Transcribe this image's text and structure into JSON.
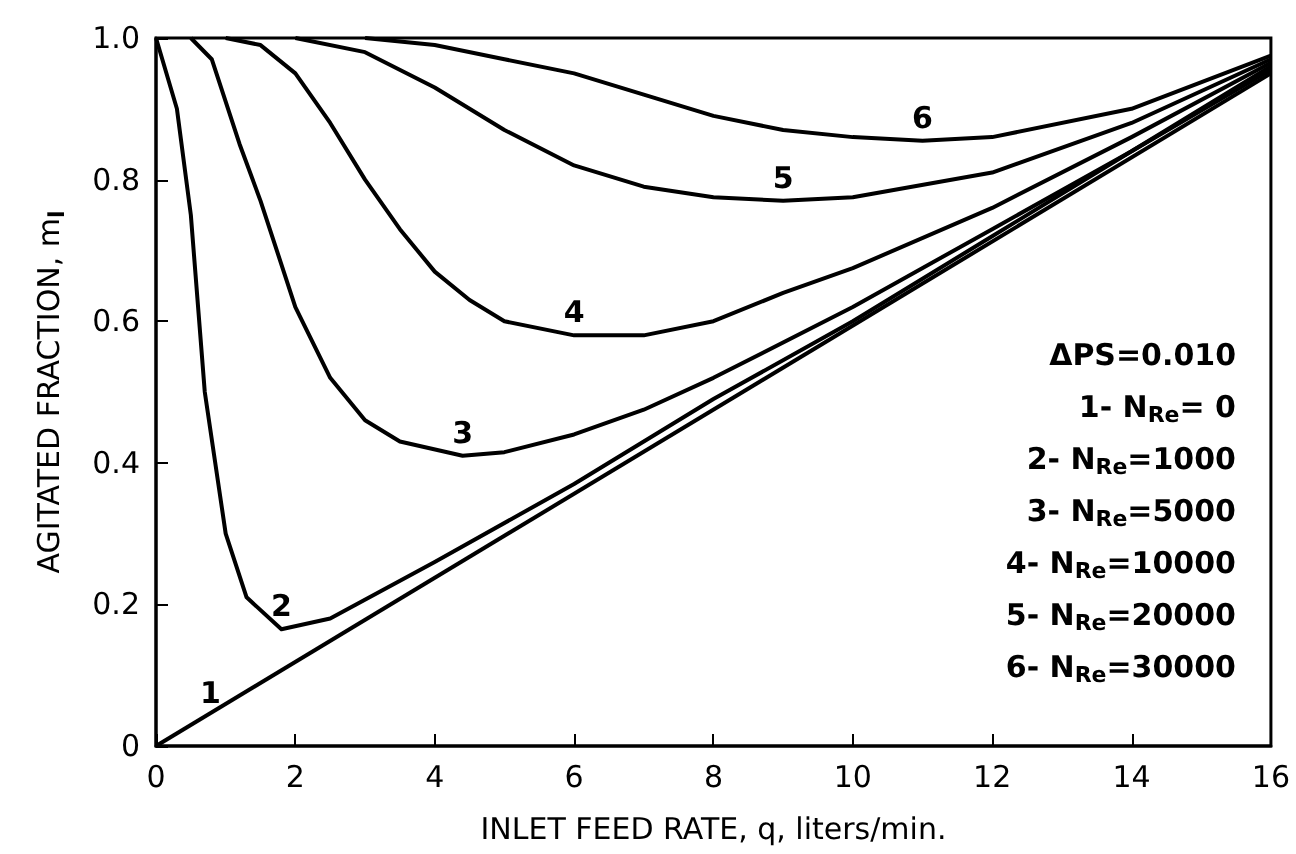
{
  "chart_data": {
    "type": "line",
    "xlabel": "INLET FEED RATE, q, liters/min.",
    "ylabel": "AGITATED FRACTION, m$_{l}$",
    "xlim": [
      0,
      16
    ],
    "ylim": [
      0,
      1
    ],
    "xticks": [
      0,
      2,
      4,
      6,
      8,
      10,
      12,
      14,
      16
    ],
    "yticks": [
      0,
      0.2,
      0.4,
      0.6,
      0.8,
      {
        "value": 1,
        "label": "1.0"
      }
    ],
    "grid": false,
    "marker": "none",
    "line_style": "solid",
    "series": [
      {
        "name": "1",
        "color": "#000000",
        "x": [
          0,
          16
        ],
        "values": [
          0,
          0.95
        ]
      },
      {
        "name": "2",
        "color": "#000000",
        "x": [
          0,
          0.3,
          0.5,
          0.7,
          1,
          1.3,
          1.8,
          2.5,
          4,
          6,
          8,
          10,
          12,
          14,
          16
        ],
        "values": [
          1,
          0.9,
          0.75,
          0.5,
          0.3,
          0.21,
          0.165,
          0.18,
          0.26,
          0.37,
          0.49,
          0.6,
          0.72,
          0.84,
          0.955
        ]
      },
      {
        "name": "3",
        "color": "#000000",
        "x": [
          0.5,
          0.8,
          1.2,
          1.5,
          2,
          2.5,
          3,
          3.5,
          4.4,
          5,
          6,
          7,
          8,
          10,
          12,
          14,
          16
        ],
        "values": [
          1,
          0.97,
          0.85,
          0.77,
          0.62,
          0.52,
          0.46,
          0.43,
          0.41,
          0.415,
          0.44,
          0.475,
          0.52,
          0.62,
          0.73,
          0.84,
          0.96
        ]
      },
      {
        "name": "4",
        "color": "#000000",
        "x": [
          1,
          1.5,
          2,
          2.5,
          3,
          3.5,
          4,
          4.5,
          5,
          6,
          7,
          8,
          9,
          10,
          12,
          14,
          16
        ],
        "values": [
          1,
          0.99,
          0.95,
          0.88,
          0.8,
          0.73,
          0.67,
          0.63,
          0.6,
          0.58,
          0.58,
          0.6,
          0.64,
          0.675,
          0.76,
          0.86,
          0.965
        ]
      },
      {
        "name": "5",
        "color": "#000000",
        "x": [
          2,
          3,
          4,
          5,
          6,
          7,
          8,
          9,
          10,
          12,
          14,
          16
        ],
        "values": [
          1,
          0.98,
          0.93,
          0.87,
          0.82,
          0.79,
          0.775,
          0.77,
          0.775,
          0.81,
          0.88,
          0.97
        ]
      },
      {
        "name": "6",
        "color": "#000000",
        "x": [
          3,
          4,
          5,
          6,
          7,
          8,
          9,
          10,
          11,
          12,
          14,
          16
        ],
        "values": [
          1,
          0.99,
          0.97,
          0.95,
          0.92,
          0.89,
          0.87,
          0.86,
          0.855,
          0.86,
          0.9,
          0.975
        ]
      }
    ],
    "annotations": [
      "ΔPS=0.010",
      "1- N$_{Re}$= 0",
      "2- N$_{Re}$=1000",
      "3- N$_{Re}$=5000",
      "4- N$_{Re}$=10000",
      "5- N$_{Re}$=20000",
      "6- N$_{Re}$=30000"
    ]
  }
}
